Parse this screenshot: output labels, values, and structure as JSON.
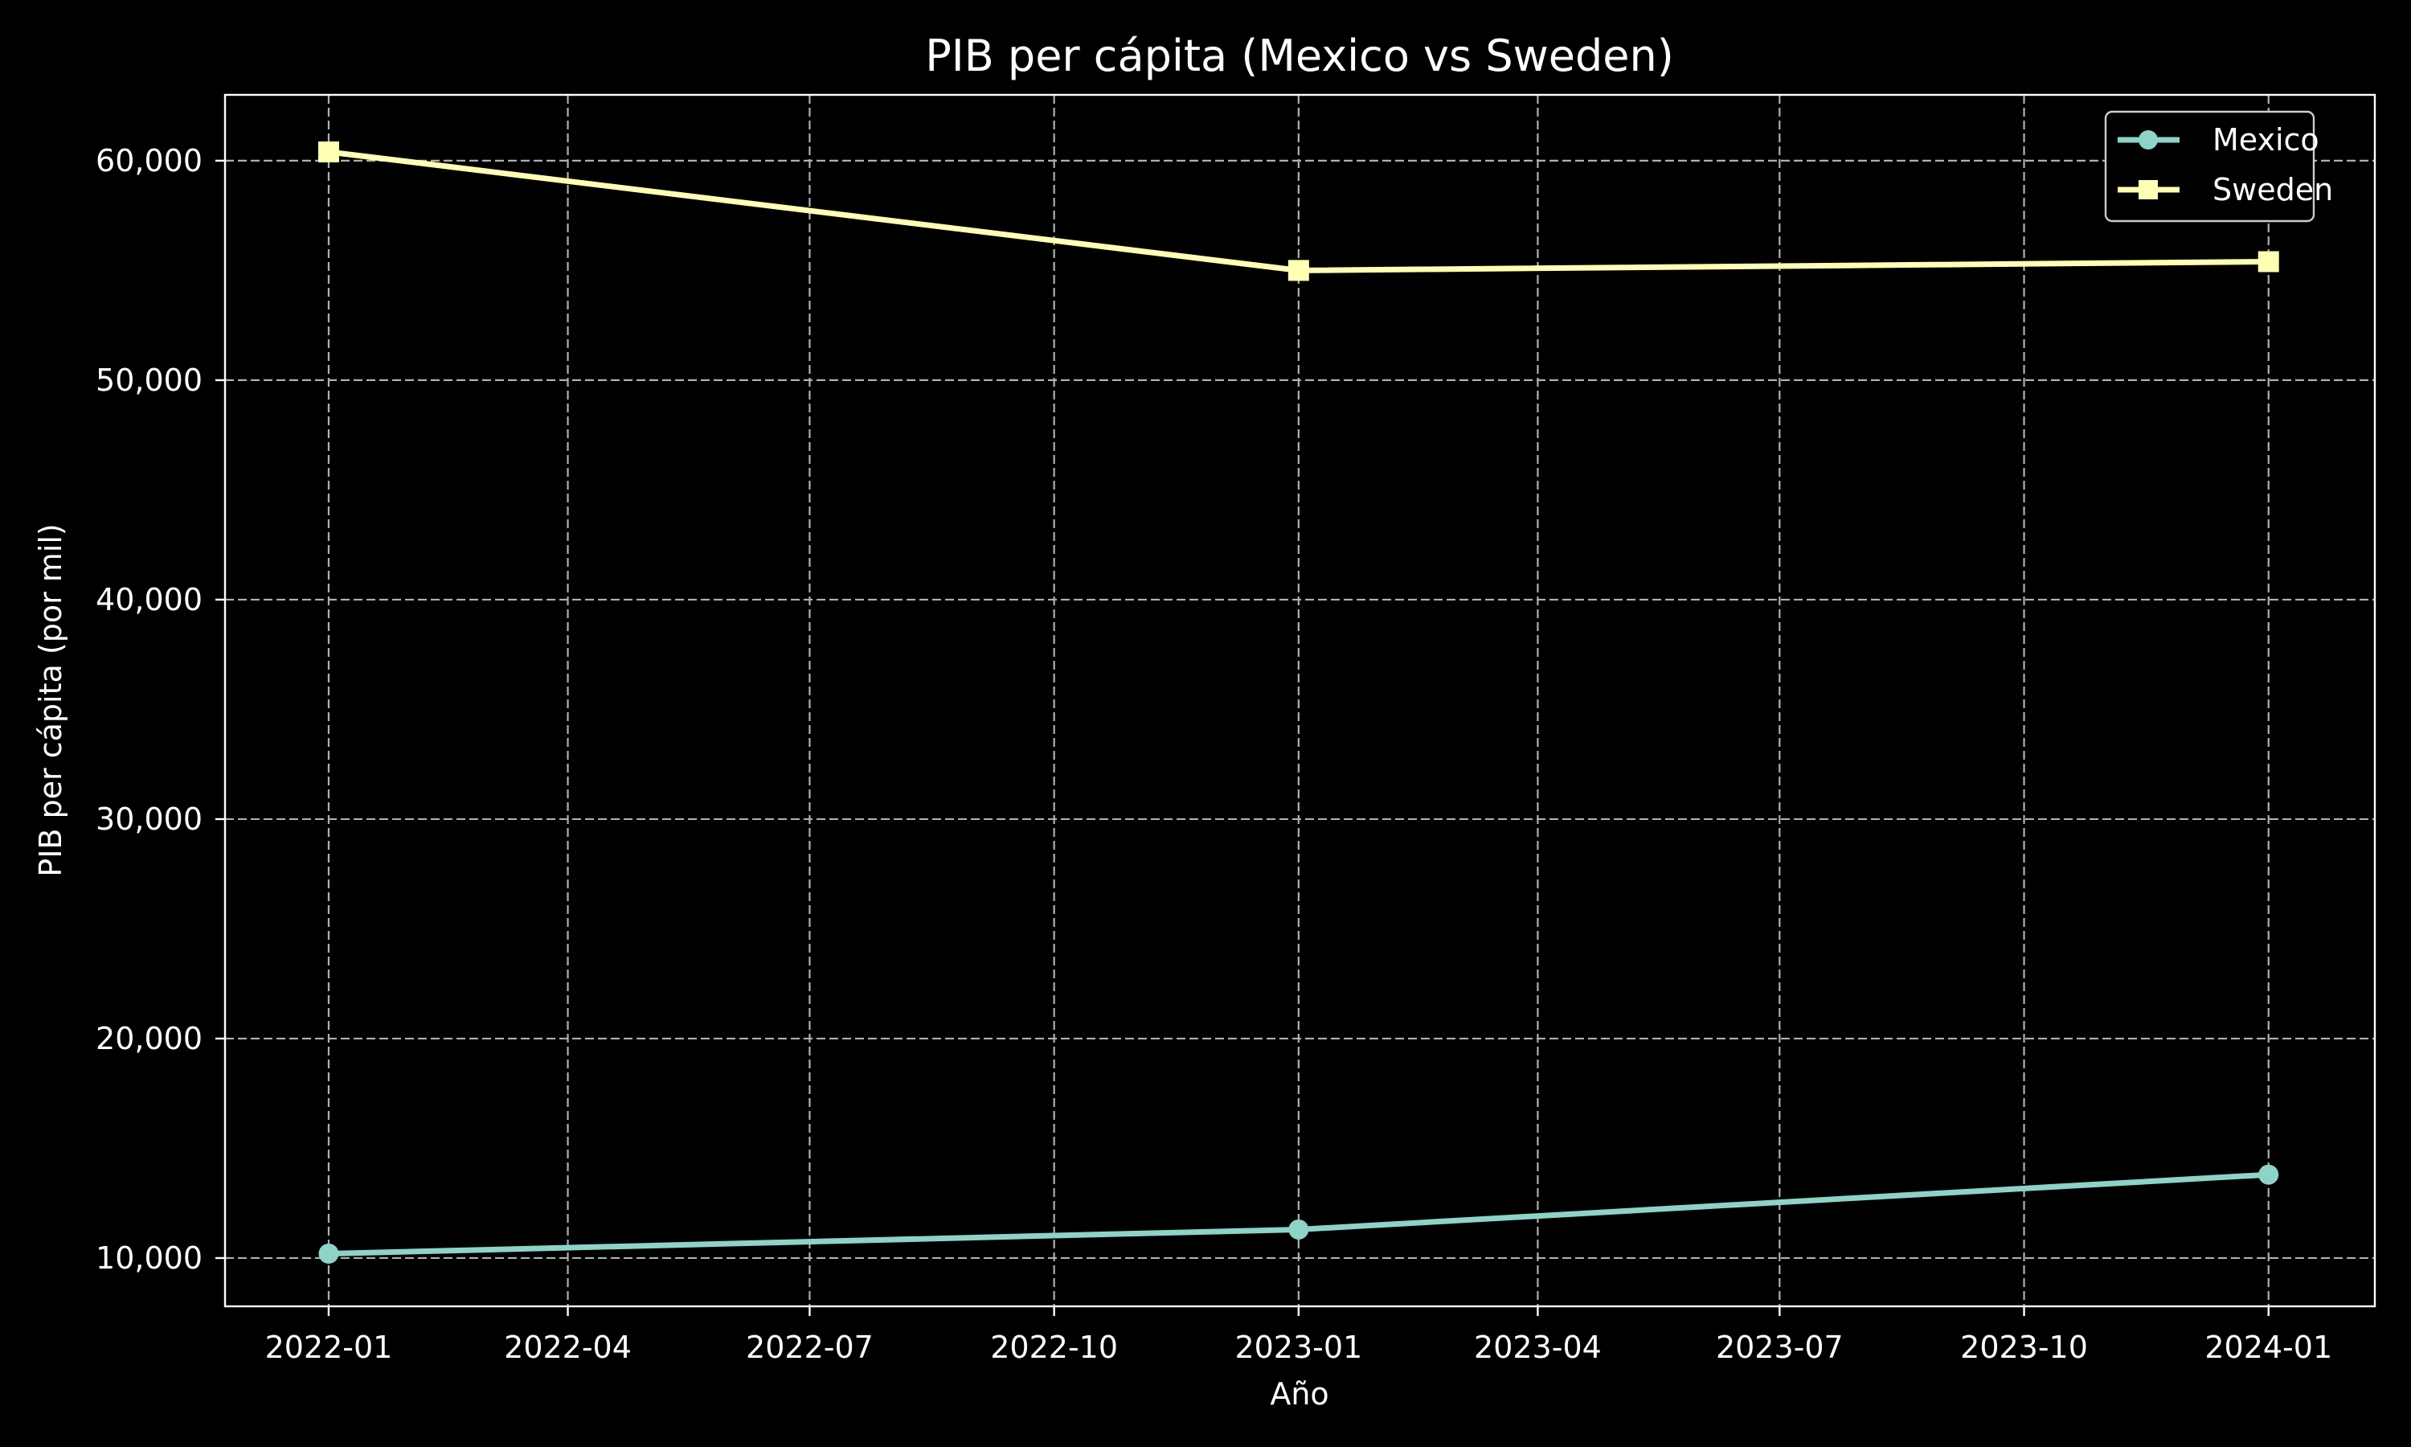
{
  "chart_data": {
    "type": "line",
    "title": "PIB per cápita (Mexico vs Sweden)",
    "xlabel": "Año",
    "ylabel": "PIB per cápita (por mil)",
    "x_tick_labels": [
      "2022-01",
      "2022-04",
      "2022-07",
      "2022-10",
      "2023-01",
      "2023-04",
      "2023-07",
      "2023-10",
      "2024-01"
    ],
    "y_tick_labels": [
      "10,000",
      "20,000",
      "30,000",
      "40,000",
      "50,000",
      "60,000"
    ],
    "x_ticks": [
      "2022-01-01",
      "2022-04-01",
      "2022-07-01",
      "2022-10-01",
      "2023-01-01",
      "2023-04-01",
      "2023-07-01",
      "2023-10-01",
      "2024-01-01"
    ],
    "y_ticks": [
      10000,
      20000,
      30000,
      40000,
      50000,
      60000
    ],
    "xlim": [
      "2021-11-23",
      "2024-02-10"
    ],
    "ylim": [
      7800,
      63000
    ],
    "grid": true,
    "legend_position": "top-right",
    "x": [
      "2022-01-01",
      "2023-01-01",
      "2024-01-01"
    ],
    "series": [
      {
        "name": "Mexico",
        "values": [
          10200,
          11300,
          13800
        ],
        "color": "#8dd3c7",
        "marker": "circle"
      },
      {
        "name": "Sweden",
        "values": [
          60400,
          55000,
          55400
        ],
        "color": "#ffffb3",
        "marker": "square"
      }
    ]
  }
}
